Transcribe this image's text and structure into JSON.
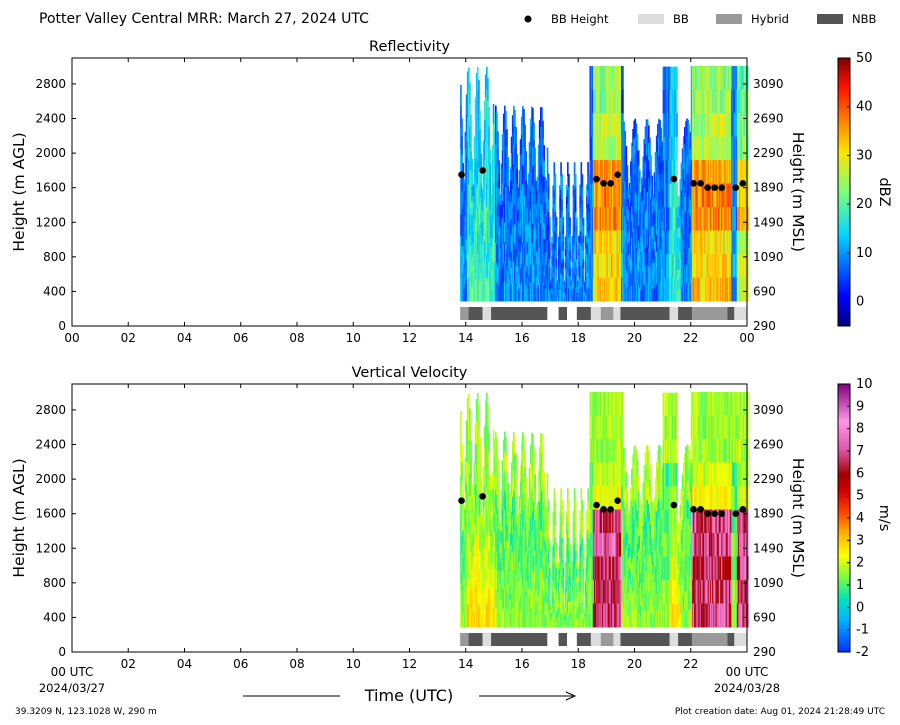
{
  "header": {
    "title": "Potter Valley Central MRR:  March 27, 2024 UTC"
  },
  "legend": {
    "placement": "top-right",
    "items": [
      {
        "label": "BB Height",
        "kind": "dot",
        "color": "#000000"
      },
      {
        "label": "BB",
        "kind": "swatch",
        "color": "#dddddd"
      },
      {
        "label": "Hybrid",
        "kind": "swatch",
        "color": "#999999"
      },
      {
        "label": "NBB",
        "kind": "swatch",
        "color": "#555555"
      }
    ]
  },
  "footer": {
    "location": "39.3209 N, 123.1028 W, 290 m",
    "creation": "Plot creation date: Aug 01, 2024 21:28:49 UTC",
    "xlabel": "Time (UTC)",
    "start_tick": "00 UTC",
    "start_date": "2024/03/27",
    "end_tick": "00 UTC",
    "end_date": "2024/03/28"
  },
  "chart_data": [
    {
      "type": "heatmap",
      "title": "Reflectivity",
      "ylabel": "Height (m AGL)",
      "ylabel2": "Height (m MSL)",
      "xlim": [
        0,
        24
      ],
      "ylim": [
        0,
        3100
      ],
      "xticks": [
        "00",
        "02",
        "04",
        "06",
        "08",
        "10",
        "12",
        "14",
        "16",
        "18",
        "20",
        "22",
        "00"
      ],
      "yticks": [
        0,
        400,
        800,
        1200,
        1600,
        2000,
        2400,
        2800
      ],
      "yticks2": [
        290,
        690,
        1090,
        1490,
        1890,
        2290,
        2690,
        3090
      ],
      "colorbar": {
        "label": "dBZ",
        "min": -5,
        "max": 50,
        "ticks": [
          0,
          10,
          20,
          30,
          40,
          50
        ]
      },
      "data_start_hour": 13.8,
      "bb_height": {
        "x": [
          13.85,
          14.6,
          18.65,
          18.9,
          19.15,
          19.4,
          21.4,
          22.1,
          22.35,
          22.6,
          22.85,
          23.1,
          23.6,
          23.85
        ],
        "y": [
          1750,
          1800,
          1700,
          1650,
          1650,
          1750,
          1700,
          1650,
          1650,
          1600,
          1600,
          1600,
          1600,
          1650
        ]
      },
      "bb_type": [
        {
          "start": 13.8,
          "end": 14.1,
          "type": "Hybrid"
        },
        {
          "start": 14.1,
          "end": 14.6,
          "type": "NBB"
        },
        {
          "start": 14.6,
          "end": 14.9,
          "type": "BB"
        },
        {
          "start": 14.9,
          "end": 16.9,
          "type": "NBB"
        },
        {
          "start": 17.3,
          "end": 17.6,
          "type": "NBB"
        },
        {
          "start": 17.95,
          "end": 18.45,
          "type": "NBB"
        },
        {
          "start": 18.45,
          "end": 18.8,
          "type": "BB"
        },
        {
          "start": 18.8,
          "end": 19.25,
          "type": "Hybrid"
        },
        {
          "start": 19.25,
          "end": 19.5,
          "type": "BB"
        },
        {
          "start": 19.5,
          "end": 21.25,
          "type": "NBB"
        },
        {
          "start": 21.25,
          "end": 21.55,
          "type": "BB"
        },
        {
          "start": 21.55,
          "end": 22.05,
          "type": "NBB"
        },
        {
          "start": 22.05,
          "end": 23.3,
          "type": "Hybrid"
        },
        {
          "start": 23.3,
          "end": 23.55,
          "type": "NBB"
        },
        {
          "start": 23.55,
          "end": 24.0,
          "type": "BB"
        }
      ]
    },
    {
      "type": "heatmap",
      "title": "Vertical Velocity",
      "ylabel": "Height (m AGL)",
      "ylabel2": "Height (m MSL)",
      "xlim": [
        0,
        24
      ],
      "ylim": [
        0,
        3100
      ],
      "xticks": [
        "",
        "02",
        "04",
        "06",
        "08",
        "10",
        "12",
        "14",
        "16",
        "18",
        "20",
        "22",
        ""
      ],
      "yticks": [
        0,
        400,
        800,
        1200,
        1600,
        2000,
        2400,
        2800
      ],
      "yticks2": [
        290,
        690,
        1090,
        1490,
        1890,
        2290,
        2690,
        3090
      ],
      "colorbar": {
        "label": "m/s",
        "min": -2,
        "max": 10,
        "ticks": [
          -2,
          -1,
          0,
          1,
          2,
          3,
          4,
          5,
          6,
          7,
          8,
          9,
          10
        ]
      },
      "data_start_hour": 13.8,
      "bb_height": {
        "x": [
          13.85,
          14.6,
          18.65,
          18.9,
          19.15,
          19.4,
          21.4,
          22.1,
          22.35,
          22.6,
          22.85,
          23.1,
          23.6,
          23.85
        ],
        "y": [
          1750,
          1800,
          1700,
          1650,
          1650,
          1750,
          1700,
          1650,
          1650,
          1600,
          1600,
          1600,
          1600,
          1650
        ]
      },
      "bb_type": [
        {
          "start": 13.8,
          "end": 14.1,
          "type": "Hybrid"
        },
        {
          "start": 14.1,
          "end": 14.6,
          "type": "NBB"
        },
        {
          "start": 14.6,
          "end": 14.9,
          "type": "BB"
        },
        {
          "start": 14.9,
          "end": 16.9,
          "type": "NBB"
        },
        {
          "start": 17.3,
          "end": 17.6,
          "type": "NBB"
        },
        {
          "start": 17.95,
          "end": 18.45,
          "type": "NBB"
        },
        {
          "start": 18.45,
          "end": 18.8,
          "type": "BB"
        },
        {
          "start": 18.8,
          "end": 19.25,
          "type": "Hybrid"
        },
        {
          "start": 19.25,
          "end": 19.5,
          "type": "BB"
        },
        {
          "start": 19.5,
          "end": 21.25,
          "type": "NBB"
        },
        {
          "start": 21.25,
          "end": 21.55,
          "type": "BB"
        },
        {
          "start": 21.55,
          "end": 22.05,
          "type": "NBB"
        },
        {
          "start": 22.05,
          "end": 23.3,
          "type": "Hybrid"
        },
        {
          "start": 23.3,
          "end": 23.55,
          "type": "NBB"
        },
        {
          "start": 23.55,
          "end": 24.0,
          "type": "BB"
        }
      ]
    }
  ]
}
